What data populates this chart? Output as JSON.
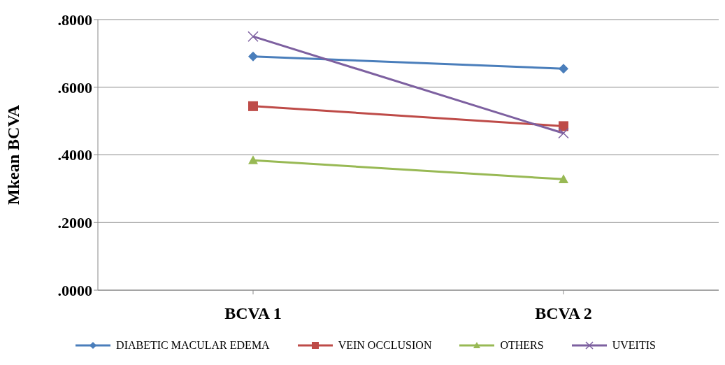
{
  "chart_data": {
    "type": "line",
    "ylabel": "Mkean BCVA",
    "categories": [
      "BCVA 1",
      "BCVA 2"
    ],
    "series": [
      {
        "name": "DIABETIC MACULAR EDEMA",
        "color": "#4a7ebb",
        "values": [
          0.691,
          0.655
        ],
        "marker": "diamond"
      },
      {
        "name": "VEIN OCCLUSION",
        "color": "#be4b48",
        "values": [
          0.544,
          0.485
        ],
        "marker": "square"
      },
      {
        "name": "OTHERS",
        "color": "#98b954",
        "values": [
          0.384,
          0.328
        ],
        "marker": "triangle"
      },
      {
        "name": "UVEITIS",
        "color": "#7d60a0",
        "values": [
          0.75,
          0.464
        ],
        "marker": "cross"
      }
    ],
    "ylim": [
      0,
      0.8
    ],
    "yticks": [
      {
        "value": 0,
        "label": ".0000"
      },
      {
        "value": 0.2,
        "label": ".2000"
      },
      {
        "value": 0.4,
        "label": ".4000"
      },
      {
        "value": 0.6,
        "label": ".6000"
      },
      {
        "value": 0.8,
        "label": ".8000"
      }
    ],
    "grid": "y",
    "legend": "bottom",
    "line_style": "solid"
  }
}
